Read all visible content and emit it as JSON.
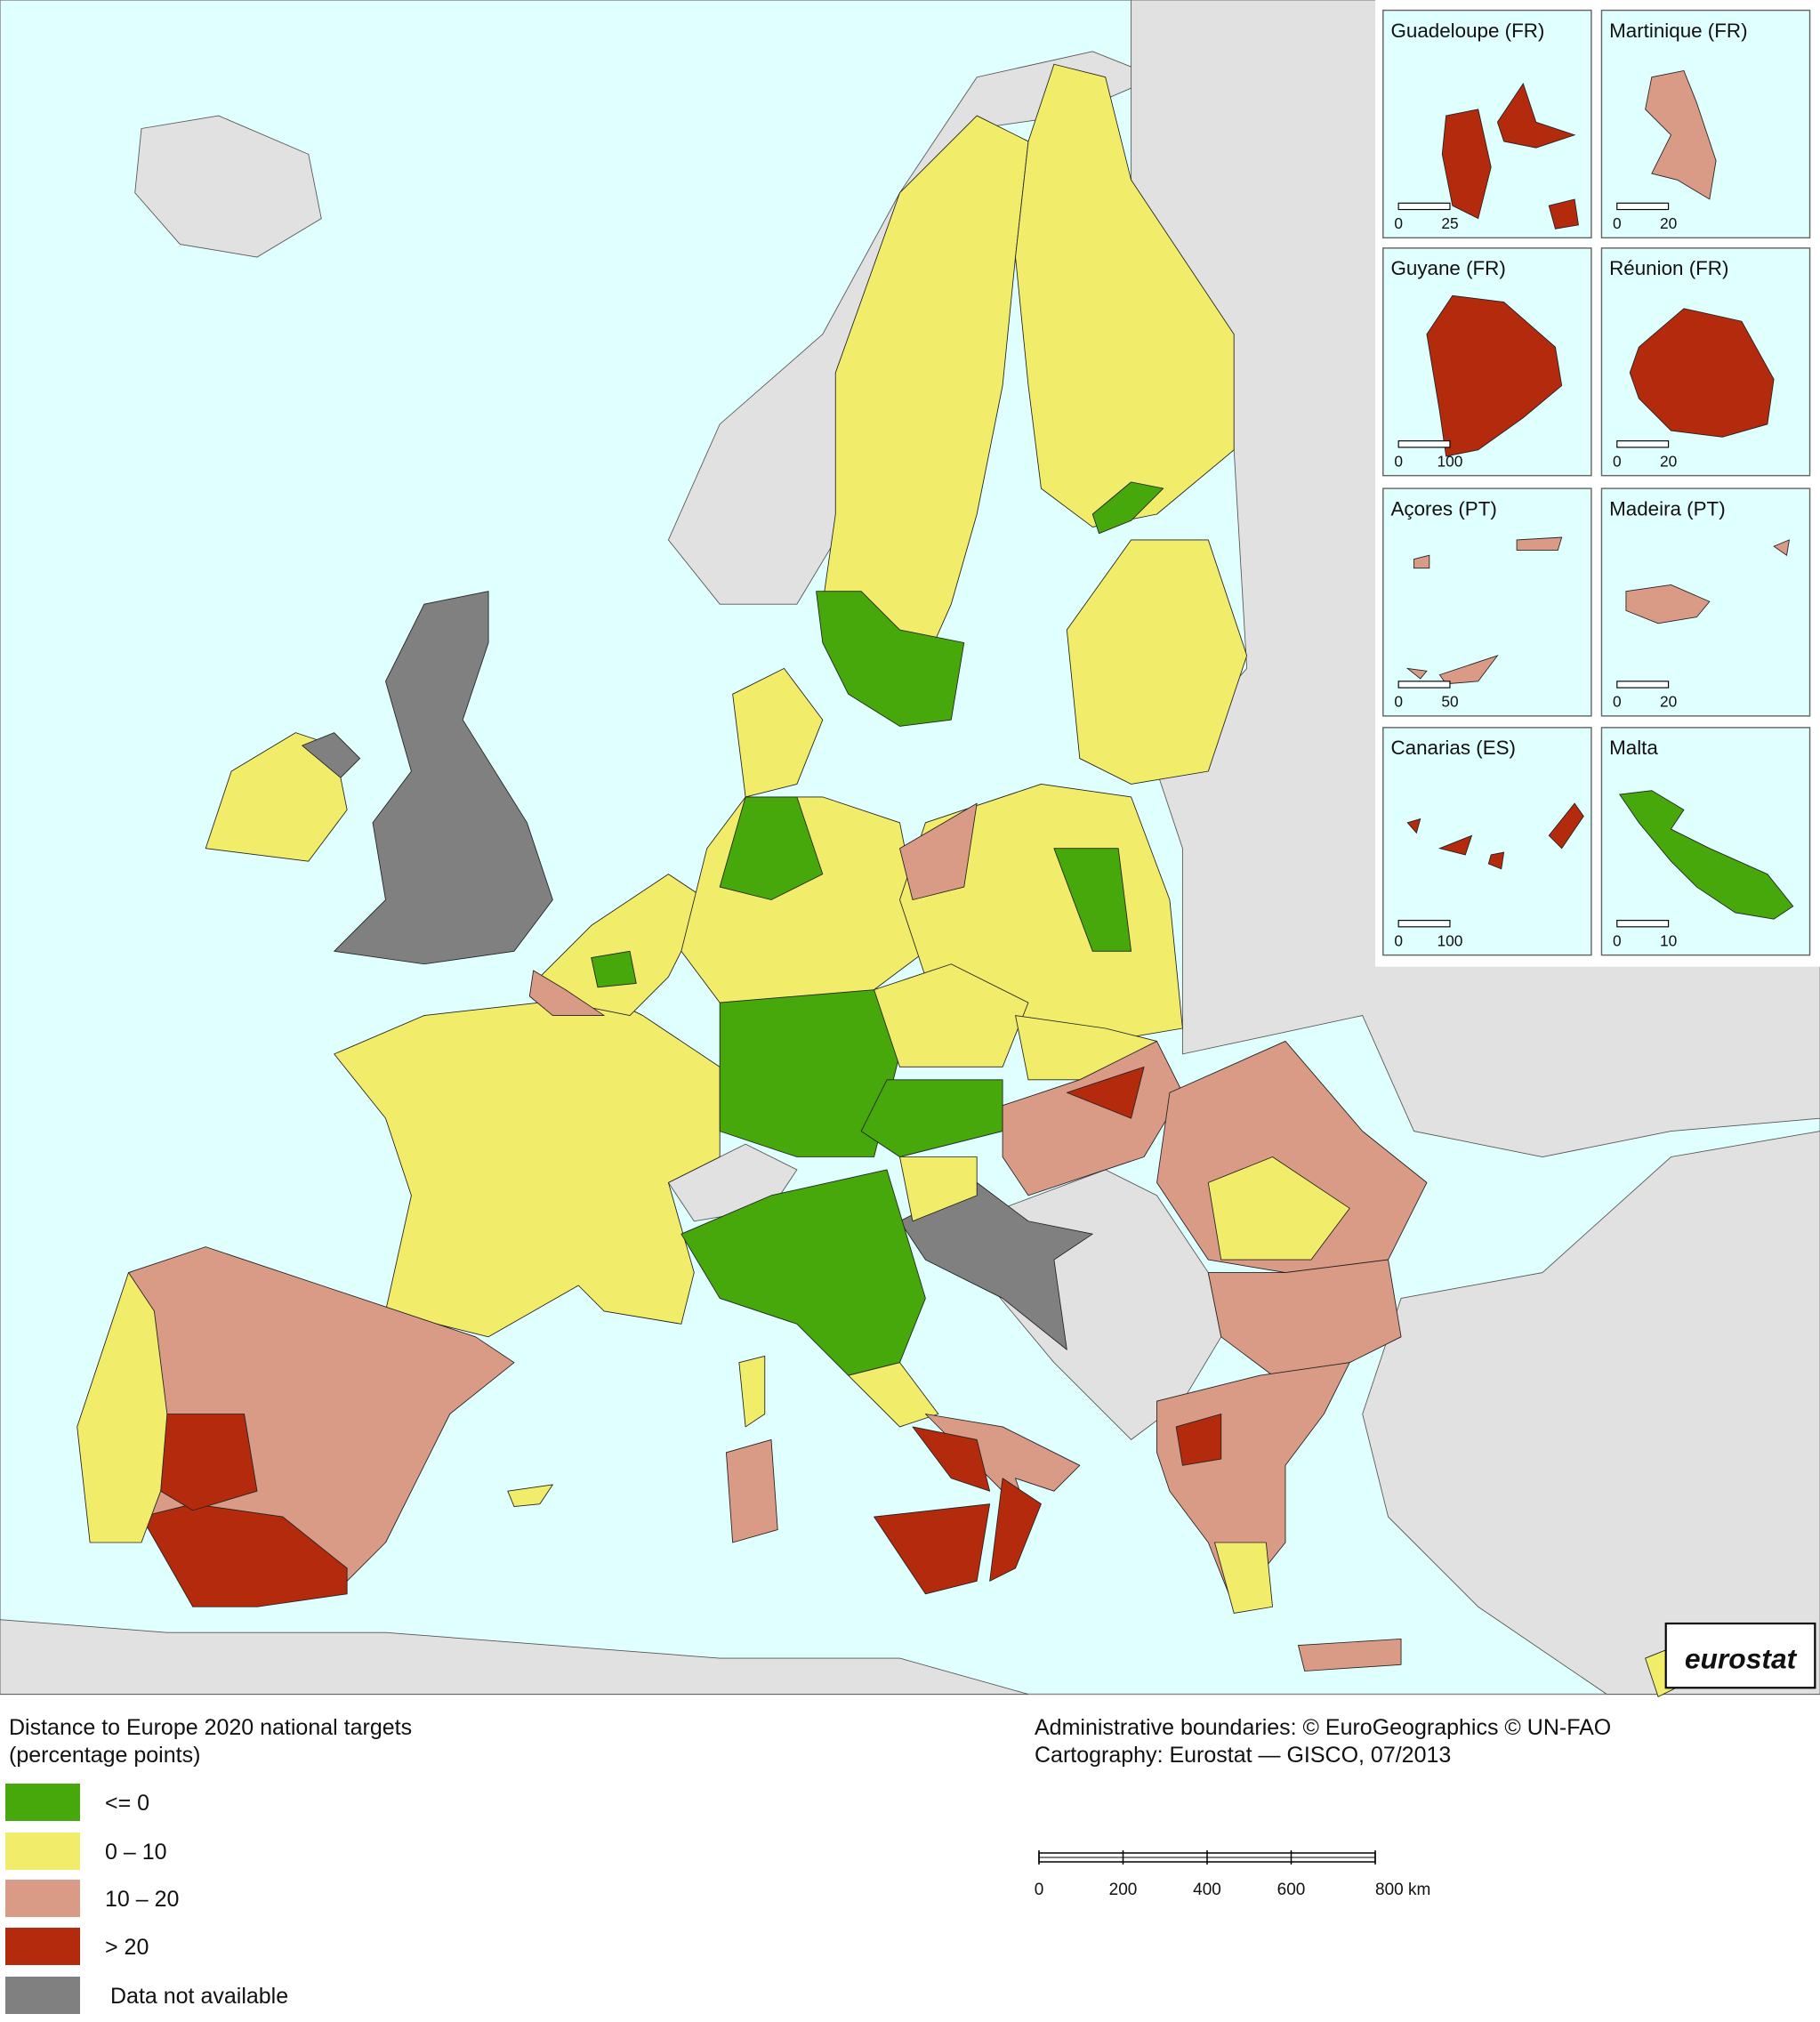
{
  "insets": [
    {
      "label": "Guadeloupe (FR)",
      "scale": [
        "0",
        "25"
      ]
    },
    {
      "label": "Martinique (FR)",
      "scale": [
        "0",
        "20"
      ]
    },
    {
      "label": "Guyane (FR)",
      "scale": [
        "0",
        "100"
      ]
    },
    {
      "label": "Réunion (FR)",
      "scale": [
        "0",
        "20"
      ]
    },
    {
      "label": "Açores (PT)",
      "scale": [
        "0",
        "50"
      ]
    },
    {
      "label": "Madeira (PT)",
      "scale": [
        "0",
        "20"
      ]
    },
    {
      "label": "Canarias (ES)",
      "scale": [
        "0",
        "100"
      ]
    },
    {
      "label": "Malta",
      "scale": [
        "0",
        "10"
      ]
    }
  ],
  "logo": "eurostat",
  "legend": {
    "title": [
      "Distance to Europe 2020 national targets",
      "(percentage points)"
    ],
    "items": [
      {
        "label": "<= 0",
        "color": "#46a80a"
      },
      {
        "label": "0 – 10",
        "color": "#f1ed6a"
      },
      {
        "label": "10 – 20",
        "color": "#d99a86"
      },
      {
        "label": "> 20",
        "color": "#b32a0c"
      },
      {
        "label": "Data not available",
        "color": "#808080"
      }
    ]
  },
  "credits": [
    "Administrative boundaries: © EuroGeographics © UN-FAO",
    "Cartography: Eurostat — GISCO, 07/2013"
  ],
  "scale_bar": [
    "0",
    "200",
    "400",
    "600",
    "800 km"
  ]
}
